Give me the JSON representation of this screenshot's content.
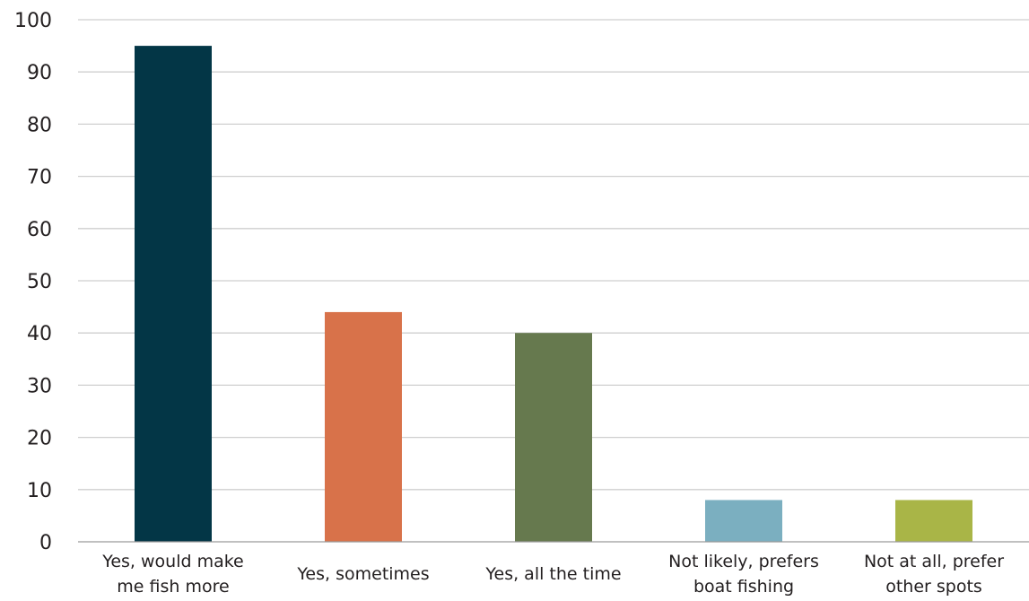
{
  "chart_data": {
    "type": "bar",
    "title": "",
    "xlabel": "",
    "ylabel": "",
    "ylim": [
      0,
      100
    ],
    "yticks": [
      0,
      10,
      20,
      30,
      40,
      50,
      60,
      70,
      80,
      90,
      100
    ],
    "grid": true,
    "legend": "none",
    "categories": [
      [
        "Yes, would make",
        "me fish more"
      ],
      [
        "Yes, sometimes"
      ],
      [
        "Yes, all the time"
      ],
      [
        "Not likely, prefers",
        "boat fishing"
      ],
      [
        "Not at all, prefer",
        "other spots"
      ]
    ],
    "values": [
      95,
      44,
      40,
      8,
      8
    ],
    "colors": [
      "#033646",
      "#d8724a",
      "#66794e",
      "#7bafc0",
      "#a9b547"
    ]
  }
}
